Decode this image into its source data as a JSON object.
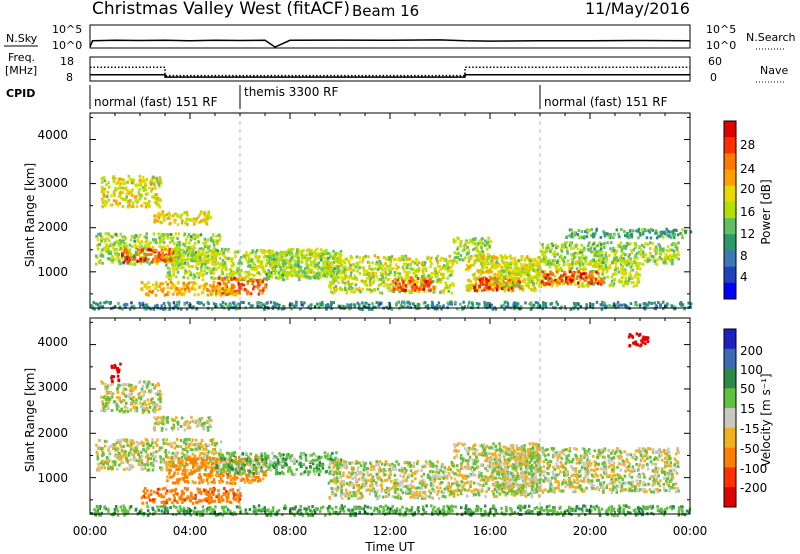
{
  "header": {
    "station": "Christmas Valley West (fitACF)",
    "beam": "Beam 16",
    "date": "11/May/2016"
  },
  "sky_panel": {
    "left_label": "N.Sky",
    "left_ticks": [
      "10^5",
      "10^0"
    ],
    "right_label": "N.Search",
    "right_ticks": [
      "10^5",
      "10^0"
    ]
  },
  "freq_panel": {
    "left_label_1": "Freq.",
    "left_label_2": "[MHz]",
    "left_ticks": [
      "18",
      "8"
    ],
    "right_label": "Nave",
    "right_ticks": [
      "60",
      "0"
    ]
  },
  "cpid_panel": {
    "label": "CPID",
    "segments": [
      {
        "text": "normal (fast) 151 RF",
        "start_hour": 0
      },
      {
        "text": "themis 3300 RF",
        "start_hour": 6
      },
      {
        "text": "normal (fast) 151 RF",
        "start_hour": 18
      }
    ]
  },
  "x_axis": {
    "label": "Time UT",
    "ticks": [
      "00:00",
      "04:00",
      "08:00",
      "12:00",
      "16:00",
      "20:00",
      "00:00"
    ]
  },
  "power_panel": {
    "ylabel": "Slant Range [km]",
    "yticks": [
      "4000",
      "3000",
      "2000",
      "1000"
    ],
    "colorbar_label": "Power [dB]",
    "colorbar_ticks": [
      "28",
      "24",
      "20",
      "16",
      "12",
      "8",
      "4"
    ],
    "colorbar_colors": [
      "#e00000",
      "#ff3000",
      "#ff7800",
      "#ffa000",
      "#e6d800",
      "#b4e000",
      "#60c060",
      "#2a9a6a",
      "#3a7ab4",
      "#2040c0",
      "#0000ff"
    ]
  },
  "velocity_panel": {
    "ylabel": "Slant Range [km]",
    "yticks": [
      "4000",
      "3000",
      "2000",
      "1000"
    ],
    "colorbar_label": "Velocity [m s⁻¹]",
    "colorbar_ticks": [
      "200",
      "100",
      "50",
      "15",
      "-15",
      "-50",
      "-100",
      "-200"
    ],
    "colorbar_colors": [
      "#2020c0",
      "#3a6ab4",
      "#2a8a4a",
      "#60c040",
      "#c8c8c0",
      "#f0b020",
      "#ff8000",
      "#ff3000",
      "#e00000"
    ]
  },
  "chart_data": [
    {
      "type": "line",
      "title": "N.Sky / N.Search",
      "x_unit": "UT hour",
      "y_scale": "log",
      "ylim": [
        "10^0",
        "10^5"
      ],
      "series": [
        {
          "name": "N.Sky",
          "x": [
            0,
            0.1,
            1,
            2,
            3,
            4,
            5,
            6,
            7,
            7.4,
            8,
            10,
            12,
            14,
            15,
            16,
            18,
            20,
            22,
            24
          ],
          "y": [
            1,
            30,
            40,
            35,
            40,
            30,
            40,
            35,
            40,
            1,
            40,
            45,
            40,
            50,
            30,
            25,
            30,
            30,
            35,
            30
          ]
        }
      ]
    },
    {
      "type": "line",
      "title": "Freq. / Nave",
      "x_unit": "UT hour",
      "ylim_freq_mhz": [
        8,
        18
      ],
      "ylim_nave": [
        0,
        60
      ],
      "series": [
        {
          "name": "Freq.",
          "x": [
            0,
            3,
            3,
            15,
            15,
            24
          ],
          "y": [
            10.4,
            10.4,
            9.3,
            9.3,
            10.4,
            10.4
          ]
        },
        {
          "name": "Nave",
          "x": [
            0,
            3,
            3,
            15,
            15,
            24
          ],
          "y": [
            35,
            35,
            12,
            12,
            35,
            35
          ]
        }
      ]
    },
    {
      "type": "heatmap",
      "title": "Power [dB]",
      "x_unit": "UT hour",
      "xlim": [
        0,
        24
      ],
      "ylabel": "Slant Range [km]",
      "ylim": [
        180,
        4600
      ],
      "color_range_db": [
        0,
        30
      ],
      "regions": [
        {
          "t0": 0.2,
          "t1": 5.2,
          "r0": 1200,
          "r1": 1900,
          "p": 14
        },
        {
          "t0": 1.2,
          "t1": 3.4,
          "r0": 1250,
          "r1": 1550,
          "p": 26
        },
        {
          "t0": 0.4,
          "t1": 2.8,
          "r0": 2500,
          "r1": 3200,
          "p": 17
        },
        {
          "t0": 2.5,
          "t1": 4.8,
          "r0": 2100,
          "r1": 2400,
          "p": 18
        },
        {
          "t0": 3.0,
          "t1": 9.5,
          "r0": 850,
          "r1": 1550,
          "p": 15
        },
        {
          "t0": 5.0,
          "t1": 7.0,
          "r0": 500,
          "r1": 900,
          "p": 25
        },
        {
          "t0": 2.0,
          "t1": 6.0,
          "r0": 500,
          "r1": 800,
          "p": 20
        },
        {
          "t0": 7.0,
          "t1": 10.0,
          "r0": 900,
          "r1": 1500,
          "p": 14
        },
        {
          "t0": 9.5,
          "t1": 14.5,
          "r0": 550,
          "r1": 1400,
          "p": 16
        },
        {
          "t0": 12.0,
          "t1": 13.8,
          "r0": 600,
          "r1": 900,
          "p": 26
        },
        {
          "t0": 14.5,
          "t1": 16.0,
          "r0": 1200,
          "r1": 1800,
          "p": 15
        },
        {
          "t0": 15.0,
          "t1": 18.0,
          "r0": 600,
          "r1": 1400,
          "p": 18
        },
        {
          "t0": 15.3,
          "t1": 17.2,
          "r0": 600,
          "r1": 900,
          "p": 27
        },
        {
          "t0": 16.0,
          "t1": 22.0,
          "r0": 700,
          "r1": 1300,
          "p": 16
        },
        {
          "t0": 18.0,
          "t1": 20.5,
          "r0": 750,
          "r1": 1050,
          "p": 26
        },
        {
          "t0": 18.0,
          "t1": 23.5,
          "r0": 1200,
          "r1": 1700,
          "p": 14
        },
        {
          "t0": 19.0,
          "t1": 24.0,
          "r0": 1800,
          "r1": 2000,
          "p": 10
        },
        {
          "t0": 0.0,
          "t1": 24.0,
          "r0": 180,
          "r1": 350,
          "p": 8
        }
      ]
    },
    {
      "type": "heatmap",
      "title": "Velocity [m s⁻¹]",
      "x_unit": "UT hour",
      "xlim": [
        0,
        24
      ],
      "ylabel": "Slant Range [km]",
      "ylim": [
        180,
        4600
      ],
      "color_range_ms": [
        -200,
        200
      ],
      "regions": [
        {
          "t0": 0.2,
          "t1": 5.2,
          "r0": 1200,
          "r1": 1900,
          "v": 0
        },
        {
          "t0": 0.4,
          "t1": 2.8,
          "r0": 2500,
          "r1": 3200,
          "v": 0
        },
        {
          "t0": 2.5,
          "t1": 4.8,
          "r0": 2100,
          "r1": 2400,
          "v": 0
        },
        {
          "t0": 3.0,
          "t1": 7.0,
          "r0": 900,
          "r1": 1500,
          "v": -40
        },
        {
          "t0": 2.0,
          "t1": 6.0,
          "r0": 450,
          "r1": 800,
          "v": -60
        },
        {
          "t0": 5.0,
          "t1": 10.0,
          "r0": 1100,
          "r1": 1600,
          "v": 20
        },
        {
          "t0": 9.5,
          "t1": 14.5,
          "r0": 550,
          "r1": 1400,
          "v": 0
        },
        {
          "t0": 14.5,
          "t1": 18.0,
          "r0": 600,
          "r1": 1800,
          "v": 0
        },
        {
          "t0": 16.0,
          "t1": 23.5,
          "r0": 700,
          "r1": 1700,
          "v": 0
        },
        {
          "t0": 0.8,
          "t1": 1.2,
          "r0": 3200,
          "r1": 3600,
          "v": -200
        },
        {
          "t0": 21.5,
          "t1": 22.3,
          "r0": 4000,
          "r1": 4300,
          "v": -180
        },
        {
          "t0": 0.0,
          "t1": 24.0,
          "r0": 180,
          "r1": 400,
          "v": 25
        }
      ]
    }
  ]
}
